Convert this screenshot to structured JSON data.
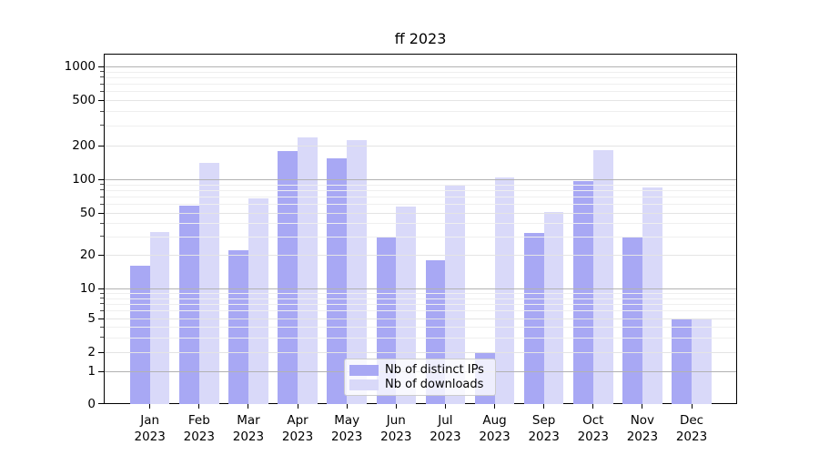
{
  "chart_data": {
    "type": "bar",
    "title": "ff 2023",
    "categories": [
      [
        "Jan",
        "2023"
      ],
      [
        "Feb",
        "2023"
      ],
      [
        "Mar",
        "2023"
      ],
      [
        "Apr",
        "2023"
      ],
      [
        "May",
        "2023"
      ],
      [
        "Jun",
        "2023"
      ],
      [
        "Jul",
        "2023"
      ],
      [
        "Aug",
        "2023"
      ],
      [
        "Sep",
        "2023"
      ],
      [
        "Oct",
        "2023"
      ],
      [
        "Nov",
        "2023"
      ],
      [
        "Dec",
        "2023"
      ]
    ],
    "series": [
      {
        "name": "Nb of distinct IPs",
        "color": "#a8a8f4",
        "values": [
          16,
          58,
          22,
          180,
          155,
          30,
          18,
          2,
          32,
          97,
          30,
          5
        ]
      },
      {
        "name": "Nb of downloads",
        "color": "#d9d9f9",
        "values": [
          33,
          140,
          68,
          235,
          225,
          57,
          90,
          104,
          51,
          182,
          85,
          5
        ]
      }
    ],
    "xlabel": "",
    "ylabel": "",
    "y_ticks": [
      0,
      1,
      2,
      5,
      10,
      20,
      50,
      100,
      200,
      500,
      1000
    ],
    "ylim": [
      0,
      1300
    ],
    "yscale": "asinh",
    "grid": true,
    "legend_position": "lower center"
  }
}
